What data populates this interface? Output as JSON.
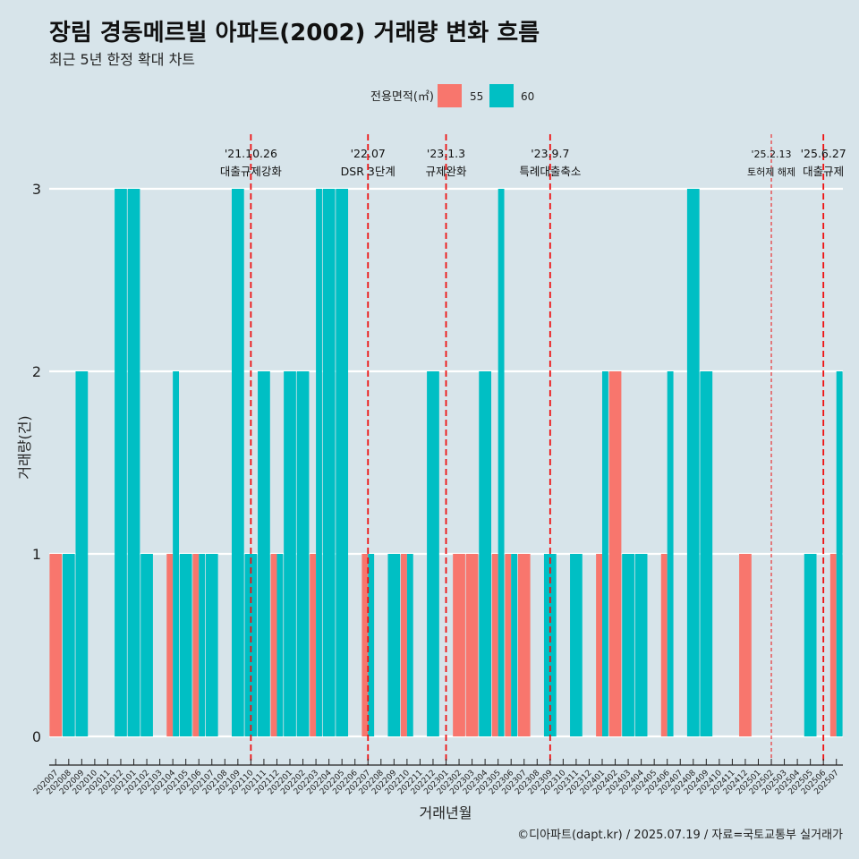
{
  "title": "장림 경동메르빌 아파트(2002) 거래량 변화 흐름",
  "subtitle": "최근 5년 한정 확대 차트",
  "caption": "©디아파트(dapt.kr) / 2025.07.19 / 자료=국토교통부 실거래가",
  "colors": {
    "background": "#d7e4ea",
    "s55": "#f8766d",
    "s60": "#00bfc4",
    "event_line": "#ee1111",
    "grid": "#ffffff"
  },
  "chart_data": {
    "type": "bar",
    "xlabel": "거래년월",
    "ylabel": "거래량(건)",
    "ylim": [
      0,
      3
    ],
    "yticks": [
      0,
      1,
      2,
      3
    ],
    "legend": {
      "title": "전용면적(㎡)",
      "position": "top",
      "entries": [
        {
          "name": "55",
          "color": "#f8766d"
        },
        {
          "name": "60",
          "color": "#00bfc4"
        }
      ]
    },
    "categories": [
      "202007",
      "202008",
      "202009",
      "202010",
      "202011",
      "202012",
      "202101",
      "202102",
      "202103",
      "202104",
      "202105",
      "202106",
      "202107",
      "202108",
      "202109",
      "202110",
      "202111",
      "202112",
      "202201",
      "202202",
      "202203",
      "202204",
      "202205",
      "202206",
      "202207",
      "202208",
      "202209",
      "202210",
      "202211",
      "202212",
      "202301",
      "202302",
      "202303",
      "202304",
      "202305",
      "202306",
      "202307",
      "202308",
      "202309",
      "202310",
      "202311",
      "202312",
      "202401",
      "202402",
      "202403",
      "202404",
      "202405",
      "202406",
      "202407",
      "202408",
      "202409",
      "202410",
      "202411",
      "202412",
      "202501",
      "202502",
      "202503",
      "202504",
      "202505",
      "202506",
      "202507"
    ],
    "series": [
      {
        "name": "55",
        "values": [
          1,
          0,
          0,
          0,
          0,
          0,
          0,
          0,
          0,
          1,
          0,
          1,
          0,
          0,
          0,
          0,
          0,
          1,
          0,
          0,
          1,
          0,
          0,
          0,
          1,
          0,
          0,
          1,
          0,
          0,
          0,
          1,
          1,
          0,
          1,
          1,
          1,
          0,
          0,
          0,
          0,
          0,
          1,
          2,
          0,
          0,
          0,
          1,
          0,
          0,
          0,
          0,
          0,
          1,
          0,
          0,
          0,
          0,
          0,
          0,
          1
        ]
      },
      {
        "name": "60",
        "values": [
          0,
          1,
          2,
          0,
          0,
          3,
          3,
          1,
          0,
          2,
          1,
          1,
          1,
          0,
          3,
          1,
          2,
          1,
          2,
          2,
          3,
          3,
          3,
          0,
          1,
          0,
          1,
          1,
          0,
          2,
          0,
          0,
          0,
          2,
          3,
          1,
          0,
          0,
          1,
          0,
          1,
          0,
          2,
          0,
          1,
          1,
          0,
          2,
          0,
          3,
          2,
          0,
          0,
          0,
          0,
          0,
          0,
          0,
          1,
          0,
          2
        ]
      }
    ],
    "events": [
      {
        "date": "'21.10.26",
        "label": "대출규제강화",
        "month": "202110",
        "style": "dashed"
      },
      {
        "date": "'22.07",
        "label": "DSR 3단계",
        "month": "202207",
        "style": "dashed"
      },
      {
        "date": "'23.1.3",
        "label": "규제완화",
        "month": "202301",
        "style": "dashed"
      },
      {
        "date": "'23.9.7",
        "label": "특례대출축소",
        "month": "202309",
        "style": "dashed"
      },
      {
        "date": "'25.2.13",
        "label": "토허제 해제",
        "month": "202502",
        "style": "dotted"
      },
      {
        "date": "'25.6.27",
        "label": "대출규제",
        "month": "202506",
        "style": "dashed"
      }
    ]
  }
}
